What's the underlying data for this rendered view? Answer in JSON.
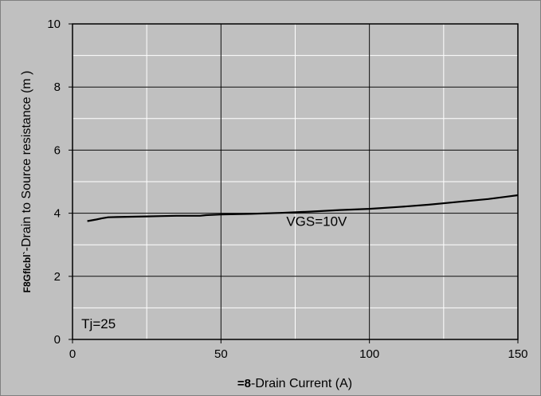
{
  "chart_data": {
    "type": "line",
    "xlabel_symbol": "=8",
    "xlabel": "-Drain Current (A)",
    "ylabel_symbol": "F8Gflcbl`",
    "ylabel": "-Drain to Source resistance (m )",
    "xlim": [
      0,
      150
    ],
    "ylim": [
      0,
      10
    ],
    "x_ticks": [
      "0",
      "50",
      "100",
      "150"
    ],
    "y_ticks": [
      "0",
      "2",
      "4",
      "6",
      "8",
      "10"
    ],
    "x_minor_step": 25,
    "y_minor_step": 1,
    "grid": true,
    "series": [
      {
        "x": [
          5,
          8,
          10,
          12,
          15,
          20,
          25,
          30,
          35,
          40,
          43,
          45,
          50,
          60,
          70,
          80,
          90,
          100,
          110,
          120,
          130,
          140,
          150
        ],
        "y": [
          3.75,
          3.8,
          3.84,
          3.87,
          3.88,
          3.89,
          3.9,
          3.91,
          3.92,
          3.92,
          3.92,
          3.94,
          3.96,
          3.98,
          4.01,
          4.05,
          4.1,
          4.14,
          4.2,
          4.27,
          4.36,
          4.45,
          4.57
        ],
        "color": "#000000"
      }
    ],
    "annotations": [
      {
        "text": "VGS=10V",
        "x": 72,
        "y": 3.6
      },
      {
        "text": "Tj=25",
        "x": 3,
        "y": 0.35
      }
    ]
  }
}
